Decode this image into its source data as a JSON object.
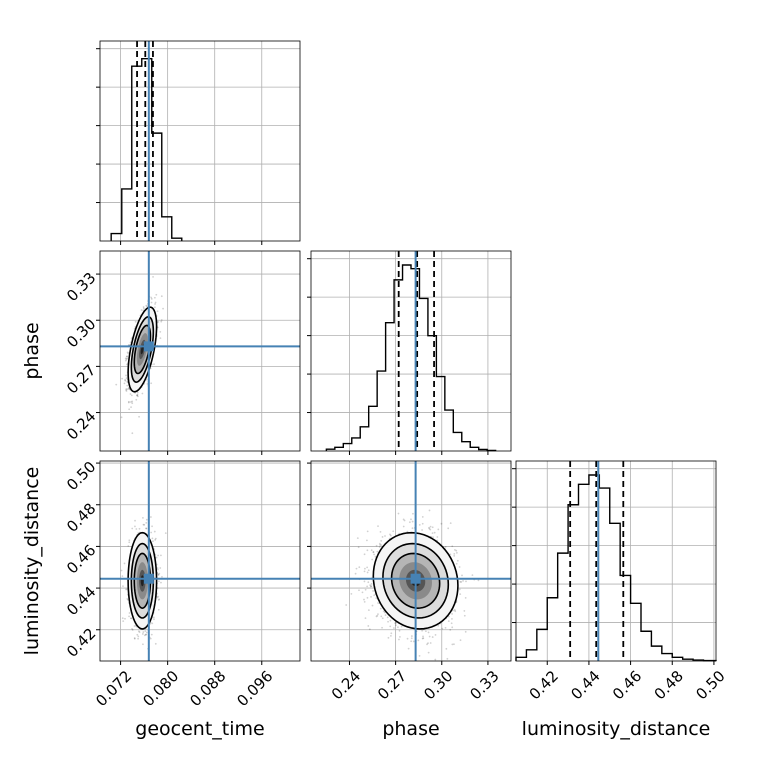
{
  "chart_data": {
    "type": "corner",
    "title": "",
    "grid": true,
    "parameters": [
      {
        "key": "geocent_time",
        "label": "geocent_time",
        "range": [
          0.0685,
          0.1025
        ],
        "ticks": [
          0.072,
          0.08,
          0.088,
          0.096
        ],
        "tick_labels": [
          "0.072",
          "0.080",
          "0.088",
          "0.096"
        ],
        "truth": 0.0768,
        "quantiles": [
          0.0748,
          0.0762,
          0.0775
        ]
      },
      {
        "key": "phase",
        "label": "phase",
        "range": [
          0.215,
          0.345
        ],
        "ticks": [
          0.24,
          0.27,
          0.3,
          0.33
        ],
        "tick_labels": [
          "0.24",
          "0.27",
          "0.30",
          "0.33"
        ],
        "truth": 0.283,
        "quantiles": [
          0.272,
          0.284,
          0.295
        ]
      },
      {
        "key": "luminosity_distance",
        "label": "luminosity_distance",
        "range": [
          0.405,
          0.501
        ],
        "ticks": [
          0.42,
          0.44,
          0.46,
          0.48,
          0.5
        ],
        "tick_labels": [
          "0.42",
          "0.44",
          "0.46",
          "0.48",
          "0.50"
        ],
        "truth": 0.4445,
        "quantiles": [
          0.431,
          0.4435,
          0.4565
        ]
      }
    ],
    "histograms": {
      "geocent_time": {
        "bin_edges": [
          0.0704,
          0.0722,
          0.0739,
          0.0756,
          0.0773,
          0.079,
          0.0807,
          0.0824
        ],
        "counts": [
          0.04,
          0.28,
          0.94,
          0.98,
          0.58,
          0.13,
          0.015
        ]
      },
      "phase": {
        "bin_edges": [
          0.225,
          0.2305,
          0.236,
          0.2415,
          0.247,
          0.2525,
          0.258,
          0.2635,
          0.269,
          0.2745,
          0.28,
          0.2855,
          0.291,
          0.2965,
          0.302,
          0.3075,
          0.313,
          0.3185,
          0.324,
          0.3295,
          0.335
        ],
        "counts": [
          0.01,
          0.02,
          0.04,
          0.07,
          0.13,
          0.24,
          0.43,
          0.69,
          0.92,
          1.0,
          0.98,
          0.82,
          0.62,
          0.4,
          0.22,
          0.1,
          0.05,
          0.02,
          0.008,
          0.003
        ]
      },
      "luminosity_distance": {
        "bin_edges": [
          0.405,
          0.41,
          0.415,
          0.42,
          0.425,
          0.43,
          0.435,
          0.44,
          0.445,
          0.45,
          0.455,
          0.46,
          0.465,
          0.47,
          0.475,
          0.48,
          0.485,
          0.49,
          0.495,
          0.501
        ],
        "counts": [
          0.02,
          0.06,
          0.17,
          0.34,
          0.58,
          0.84,
          0.95,
          1.0,
          0.93,
          0.74,
          0.46,
          0.31,
          0.16,
          0.08,
          0.04,
          0.02,
          0.01,
          0.005,
          0.002
        ]
      }
    },
    "scatter_samples": {
      "geocent_time_vs_phase": {
        "mean": [
          0.0757,
          0.281
        ],
        "sd": [
          0.0011,
          0.0125
        ],
        "corr": 0.55,
        "count": 1400
      },
      "geocent_time_vs_luminosity_distance": {
        "mean": [
          0.0757,
          0.4435
        ],
        "sd": [
          0.0011,
          0.0105
        ],
        "corr": 0.0,
        "count": 1400
      },
      "phase_vs_luminosity_distance": {
        "mean": [
          0.283,
          0.4435
        ],
        "sd": [
          0.0125,
          0.0105
        ],
        "corr": -0.1,
        "count": 2000
      }
    },
    "colors": {
      "truth": "#4682b4",
      "histogram": "#000000",
      "quantile": "#000000",
      "grid": "#b0b0b0",
      "points": "#000000"
    }
  }
}
